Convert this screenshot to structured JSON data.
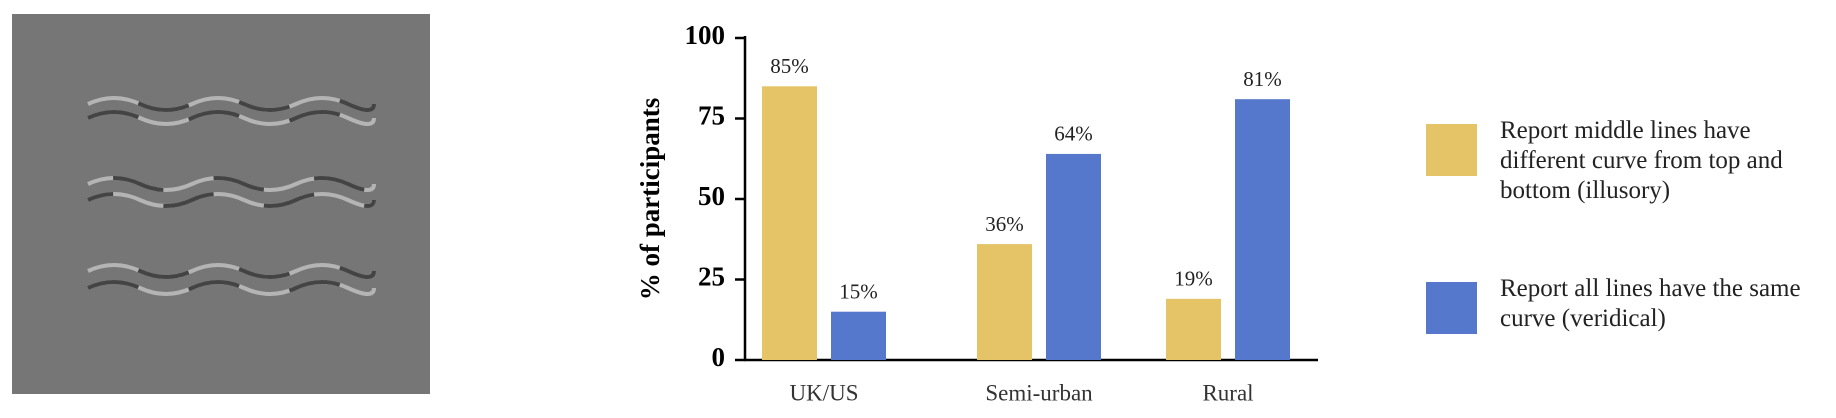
{
  "chart_data": {
    "type": "bar",
    "y_label": "% of participants",
    "categories": [
      "UK/US",
      "Semi-urban",
      "Rural"
    ],
    "series": [
      {
        "name": "Report middle lines have different curve from top and bottom (illusory)",
        "color": "#e5c467",
        "values": [
          85,
          36,
          19
        ],
        "value_labels": [
          "85%",
          "36%",
          "19%"
        ]
      },
      {
        "name": "Report all lines have the same curve (veridical)",
        "color": "#5577cc",
        "values": [
          15,
          64,
          81
        ],
        "value_labels": [
          "15%",
          "64%",
          "81%"
        ]
      }
    ],
    "ylim": [
      0,
      100
    ],
    "yticks": [
      0,
      25,
      50,
      75,
      100
    ],
    "grid": false
  }
}
